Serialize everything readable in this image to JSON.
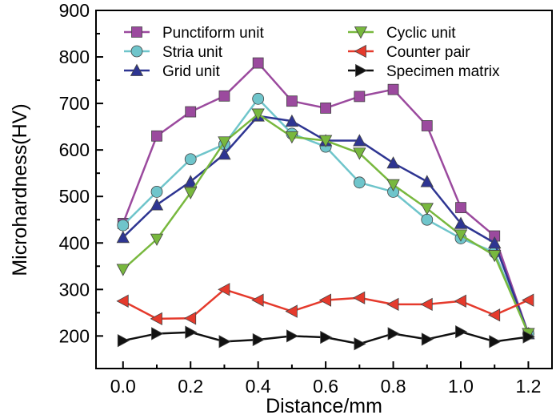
{
  "chart_data": {
    "type": "line",
    "title": "",
    "xlabel": "Distance/mm",
    "ylabel": "Microhardness(HV)",
    "xlim": [
      -0.08,
      1.27
    ],
    "ylim": [
      130,
      900
    ],
    "x_ticks": [
      0.0,
      0.2,
      0.4,
      0.6,
      0.8,
      1.0,
      1.2
    ],
    "x_tick_labels": [
      "0.0",
      "0.2",
      "0.4",
      "0.6",
      "0.8",
      "1.0",
      "1.2"
    ],
    "y_ticks": [
      200,
      300,
      400,
      500,
      600,
      700,
      800,
      900
    ],
    "y_tick_labels": [
      "200",
      "300",
      "400",
      "500",
      "600",
      "700",
      "800",
      "900"
    ],
    "grid": false,
    "legend_position": "top",
    "x": [
      0.0,
      0.1,
      0.2,
      0.3,
      0.4,
      0.5,
      0.6,
      0.7,
      0.8,
      0.9,
      1.0,
      1.1,
      1.2
    ],
    "series": [
      {
        "name": "Punctiform unit",
        "color": "#9b4a9e",
        "marker": "square",
        "values": [
          442,
          630,
          682,
          716,
          787,
          705,
          690,
          715,
          730,
          652,
          476,
          415,
          205
        ]
      },
      {
        "name": "Stria unit",
        "color": "#6fc5cb",
        "marker": "circle",
        "values": [
          438,
          510,
          580,
          612,
          710,
          635,
          607,
          530,
          510,
          450,
          410,
          380,
          205
        ]
      },
      {
        "name": "Grid unit",
        "color": "#2e3592",
        "marker": "triangle-up",
        "values": [
          412,
          482,
          532,
          591,
          673,
          662,
          620,
          620,
          572,
          532,
          442,
          400,
          205
        ]
      },
      {
        "name": "Cyclic unit",
        "color": "#78b83e",
        "marker": "triangle-down",
        "values": [
          343,
          408,
          508,
          617,
          677,
          628,
          620,
          593,
          525,
          474,
          417,
          373,
          205
        ]
      },
      {
        "name": "Counter pair",
        "color": "#e53a2c",
        "marker": "triangle-left",
        "values": [
          275,
          237,
          238,
          300,
          277,
          253,
          277,
          282,
          268,
          268,
          275,
          245,
          277
        ]
      },
      {
        "name": "Specimen matrix",
        "color": "#111111",
        "marker": "triangle-right",
        "values": [
          190,
          205,
          208,
          188,
          192,
          200,
          197,
          183,
          205,
          193,
          209,
          188,
          198
        ]
      }
    ],
    "legend_order": [
      "Punctiform unit",
      "Cyclic unit",
      "Stria unit",
      "Counter pair",
      "Grid unit",
      "Specimen matrix"
    ]
  }
}
